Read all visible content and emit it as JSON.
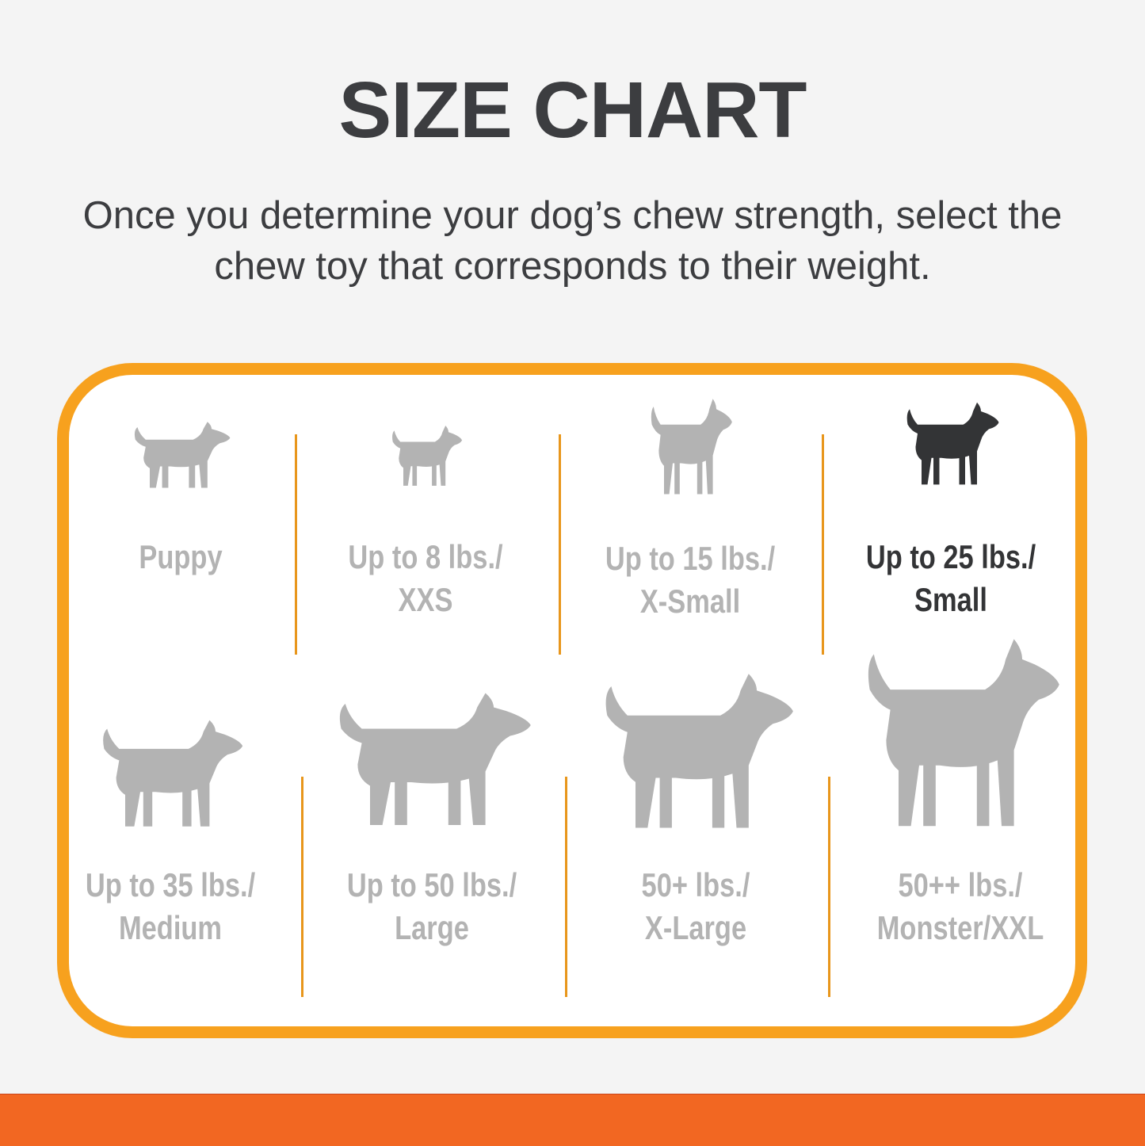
{
  "header": {
    "title": "SIZE CHART",
    "subtitle_line1": "Once you determine your dog’s chew strength, select the",
    "subtitle_line2": "chew toy that corresponds to their weight."
  },
  "colors": {
    "accent_border": "#f7a11e",
    "bottom_bar": "#f26722",
    "inactive": "#b3b3b3",
    "active": "#333436"
  },
  "sizes": [
    {
      "icon": "puppy-icon",
      "line1": "Puppy",
      "line2": "",
      "active": false
    },
    {
      "icon": "chihuahua-icon",
      "line1": "Up to 8 lbs./",
      "line2": "XXS",
      "active": false
    },
    {
      "icon": "toy-terrier-icon",
      "line1": "Up to 15 lbs./",
      "line2": "X-Small",
      "active": false
    },
    {
      "icon": "yorkie-icon",
      "line1": "Up to 25 lbs./",
      "line2": "Small",
      "active": true
    },
    {
      "icon": "beagle-icon",
      "line1": "Up to 35 lbs./",
      "line2": "Medium",
      "active": false
    },
    {
      "icon": "labrador-icon",
      "line1": "Up to 50 lbs./",
      "line2": "Large",
      "active": false
    },
    {
      "icon": "shepherd-icon",
      "line1": "50+ lbs./",
      "line2": "X-Large",
      "active": false
    },
    {
      "icon": "great-dane-icon",
      "line1": "50++ lbs./",
      "line2": "Monster/XXL",
      "active": false
    }
  ]
}
